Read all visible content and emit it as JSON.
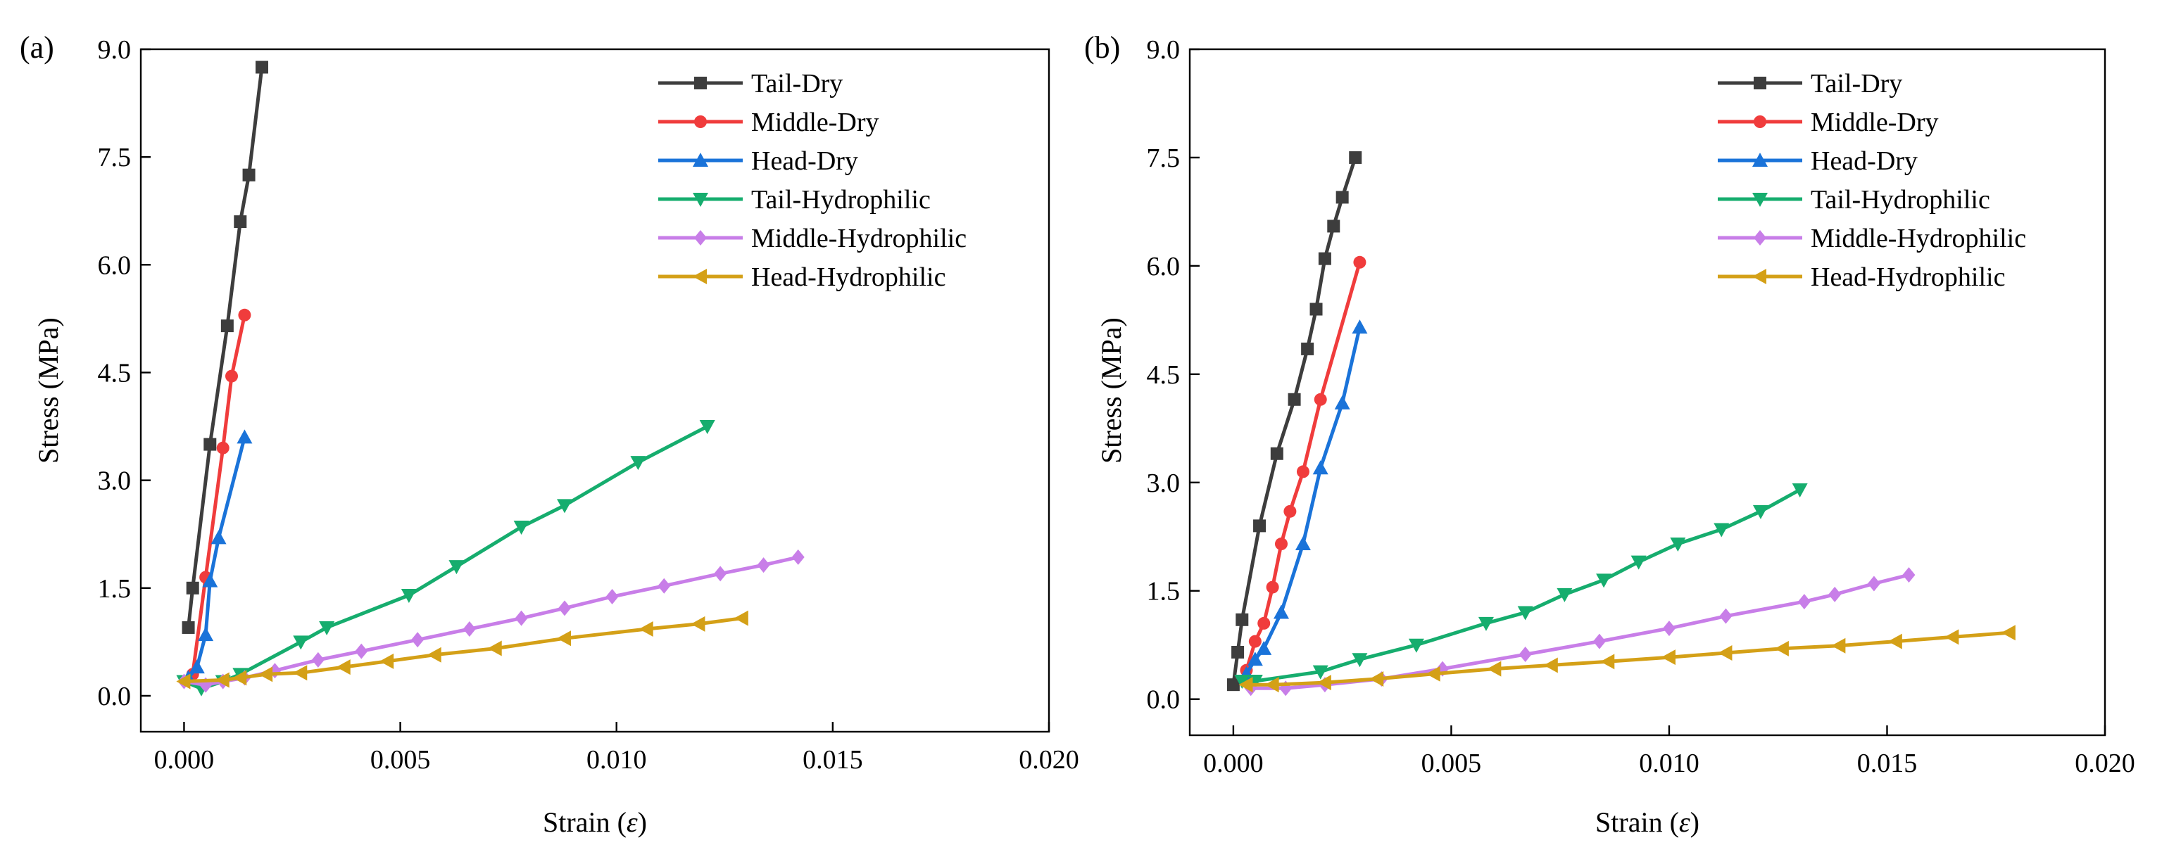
{
  "chart_data": [
    {
      "panel_label": "(a)",
      "type": "line",
      "xlabel": "Strain (",
      "xlabel_symbol": "ε",
      "xlabel_close": ")",
      "ylabel": "Stress (MPa)",
      "xlim": [
        -0.001,
        0.02
      ],
      "ylim": [
        -0.5,
        9.0
      ],
      "xticks": [
        0.0,
        0.005,
        0.01,
        0.015,
        0.02
      ],
      "xtick_labels": [
        "0.000",
        "0.005",
        "0.010",
        "0.015",
        "0.020"
      ],
      "yticks": [
        0.0,
        1.5,
        3.0,
        4.5,
        6.0,
        7.5,
        9.0
      ],
      "ytick_labels": [
        "0.0",
        "1.5",
        "3.0",
        "4.5",
        "6.0",
        "7.5",
        "9.0"
      ],
      "legend_position": "top-right",
      "series": [
        {
          "name": "Tail-Dry",
          "color": "#3d3d3d",
          "marker": "square",
          "x": [
            0.0001,
            0.0002,
            0.0006,
            0.001,
            0.0013,
            0.0015,
            0.0018
          ],
          "y": [
            0.95,
            1.5,
            3.5,
            5.15,
            6.6,
            7.25,
            8.75
          ]
        },
        {
          "name": "Middle-Dry",
          "color": "#f03c3c",
          "marker": "circle",
          "x": [
            0.0002,
            0.0005,
            0.0009,
            0.0011,
            0.0014
          ],
          "y": [
            0.3,
            1.65,
            3.45,
            4.45,
            5.3
          ]
        },
        {
          "name": "Head-Dry",
          "color": "#1a73d9",
          "marker": "triangle-up",
          "x": [
            0.0001,
            0.0003,
            0.0005,
            0.0006,
            0.0008,
            0.0014
          ],
          "y": [
            0.25,
            0.4,
            0.85,
            1.6,
            2.2,
            3.6
          ]
        },
        {
          "name": "Tail-Hydrophilic",
          "color": "#16ad6e",
          "marker": "triangle-down",
          "x": [
            0.0,
            0.0004,
            0.0009,
            0.0013,
            0.0027,
            0.0033,
            0.0052,
            0.0063,
            0.0078,
            0.0088,
            0.0105,
            0.0121
          ],
          "y": [
            0.2,
            0.1,
            0.2,
            0.3,
            0.75,
            0.95,
            1.4,
            1.8,
            2.35,
            2.65,
            3.25,
            3.75
          ]
        },
        {
          "name": "Middle-Hydrophilic",
          "color": "#c87ee8",
          "marker": "diamond",
          "x": [
            0.0,
            0.0005,
            0.0009,
            0.0014,
            0.0021,
            0.0031,
            0.0041,
            0.0054,
            0.0066,
            0.0078,
            0.0088,
            0.0099,
            0.0111,
            0.0124,
            0.0134,
            0.0142
          ],
          "y": [
            0.2,
            0.15,
            0.2,
            0.25,
            0.35,
            0.5,
            0.62,
            0.78,
            0.93,
            1.08,
            1.22,
            1.38,
            1.53,
            1.7,
            1.82,
            1.93
          ]
        },
        {
          "name": "Head-Hydrophilic",
          "color": "#d4a017",
          "marker": "triangle-left",
          "x": [
            0.0,
            0.0009,
            0.0013,
            0.0019,
            0.0027,
            0.0037,
            0.0047,
            0.0058,
            0.0072,
            0.0088,
            0.0107,
            0.0119,
            0.0129
          ],
          "y": [
            0.2,
            0.22,
            0.25,
            0.3,
            0.32,
            0.4,
            0.48,
            0.57,
            0.66,
            0.8,
            0.93,
            1.0,
            1.08
          ]
        }
      ]
    },
    {
      "panel_label": "(b)",
      "type": "line",
      "xlabel": "Strain (",
      "xlabel_symbol": "ε",
      "xlabel_close": ")",
      "ylabel": "Stress (MPa)",
      "xlim": [
        -0.001,
        0.02
      ],
      "ylim": [
        -0.5,
        9.0
      ],
      "xticks": [
        0.0,
        0.005,
        0.01,
        0.015,
        0.02
      ],
      "xtick_labels": [
        "0.000",
        "0.005",
        "0.010",
        "0.015",
        "0.020"
      ],
      "yticks": [
        0.0,
        1.5,
        3.0,
        4.5,
        6.0,
        7.5,
        9.0
      ],
      "ytick_labels": [
        "0.0",
        "1.5",
        "3.0",
        "4.5",
        "6.0",
        "7.5",
        "9.0"
      ],
      "legend_position": "top-right",
      "series": [
        {
          "name": "Tail-Dry",
          "color": "#3d3d3d",
          "marker": "square",
          "x": [
            0.0,
            0.0001,
            0.0002,
            0.0006,
            0.001,
            0.0014,
            0.0017,
            0.0019,
            0.0021,
            0.0023,
            0.0025,
            0.0028
          ],
          "y": [
            0.2,
            0.65,
            1.1,
            2.4,
            3.4,
            4.15,
            4.85,
            5.4,
            6.1,
            6.55,
            6.95,
            7.5
          ]
        },
        {
          "name": "Middle-Dry",
          "color": "#f03c3c",
          "marker": "circle",
          "x": [
            0.0003,
            0.0005,
            0.0007,
            0.0009,
            0.0011,
            0.0013,
            0.0016,
            0.002,
            0.0029
          ],
          "y": [
            0.4,
            0.8,
            1.05,
            1.55,
            2.15,
            2.6,
            3.15,
            4.15,
            6.05
          ]
        },
        {
          "name": "Head-Dry",
          "color": "#1a73d9",
          "marker": "triangle-up",
          "x": [
            0.0003,
            0.0005,
            0.0007,
            0.0011,
            0.0016,
            0.002,
            0.0025,
            0.0029
          ],
          "y": [
            0.35,
            0.55,
            0.7,
            1.2,
            2.15,
            3.2,
            4.1,
            5.15
          ]
        },
        {
          "name": "Tail-Hydrophilic",
          "color": "#16ad6e",
          "marker": "triangle-down",
          "x": [
            0.0002,
            0.0005,
            0.002,
            0.0029,
            0.0042,
            0.0058,
            0.0067,
            0.0076,
            0.0085,
            0.0093,
            0.0102,
            0.0112,
            0.0121,
            0.013
          ],
          "y": [
            0.25,
            0.25,
            0.38,
            0.55,
            0.75,
            1.05,
            1.2,
            1.45,
            1.65,
            1.9,
            2.15,
            2.35,
            2.6,
            2.9
          ]
        },
        {
          "name": "Middle-Hydrophilic",
          "color": "#c87ee8",
          "marker": "diamond",
          "x": [
            0.0004,
            0.0012,
            0.0021,
            0.0034,
            0.0048,
            0.0067,
            0.0084,
            0.01,
            0.0113,
            0.0131,
            0.0138,
            0.0147,
            0.0155
          ],
          "y": [
            0.15,
            0.15,
            0.2,
            0.28,
            0.42,
            0.62,
            0.8,
            0.98,
            1.15,
            1.35,
            1.45,
            1.6,
            1.72
          ]
        },
        {
          "name": "Head-Hydrophilic",
          "color": "#d4a017",
          "marker": "triangle-left",
          "x": [
            0.0003,
            0.0009,
            0.0021,
            0.0033,
            0.0046,
            0.006,
            0.0073,
            0.0086,
            0.01,
            0.0113,
            0.0126,
            0.0139,
            0.0152,
            0.0165,
            0.0178
          ],
          "y": [
            0.2,
            0.2,
            0.23,
            0.28,
            0.35,
            0.42,
            0.47,
            0.52,
            0.58,
            0.64,
            0.7,
            0.74,
            0.8,
            0.86,
            0.92
          ]
        }
      ]
    }
  ]
}
